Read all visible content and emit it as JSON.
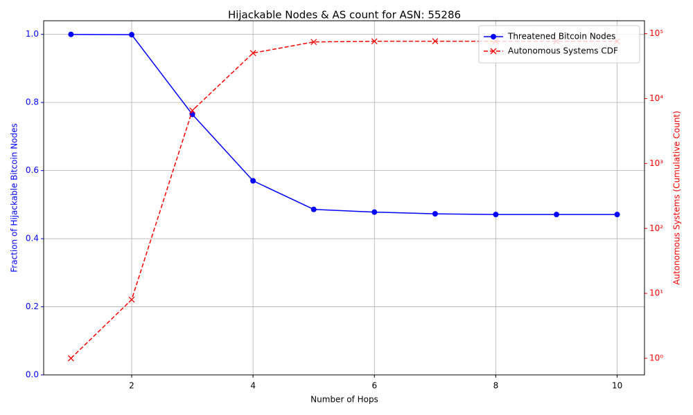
{
  "chart_data": {
    "type": "line",
    "title": "Hijackable Nodes & AS count for ASN: 55286",
    "xlabel": "Number of Hops",
    "ylabel": "Fraction of Hijackable Bitcoin Nodes",
    "y2label": "Autonomous Systems (Cumulative Count)",
    "x": [
      1,
      2,
      3,
      4,
      5,
      6,
      7,
      8,
      9,
      10
    ],
    "series": [
      {
        "name": "Threatened Bitcoin Nodes",
        "color": "#0000ff",
        "linestyle": "solid",
        "marker": "o",
        "axis": "y",
        "values": [
          1.0,
          0.999,
          0.765,
          0.57,
          0.486,
          0.478,
          0.473,
          0.471,
          0.471,
          0.471
        ]
      },
      {
        "name": "Autonomous Systems CDF",
        "color": "#ff0000",
        "linestyle": "dashed",
        "marker": "x",
        "axis": "y2",
        "values": [
          1,
          8,
          6560,
          50300,
          74500,
          76300,
          76500,
          76500,
          76500,
          76500
        ]
      }
    ],
    "xlim": [
      0.55,
      10.45
    ],
    "xticks": [
      2,
      4,
      6,
      8,
      10
    ],
    "ylim": [
      0,
      1.04
    ],
    "yticks": [
      {
        "value": 0,
        "label": "0.0"
      },
      0.2,
      0.4,
      0.6,
      0.8,
      {
        "value": 1,
        "label": "1.0"
      }
    ],
    "y2lim": [
      0.555,
      158000
    ],
    "y2scale": "log",
    "y2ticks": [
      {
        "value": 1,
        "label": "10⁰"
      },
      {
        "value": 10,
        "label": "10¹"
      },
      {
        "value": 100,
        "label": "10²"
      },
      {
        "value": 1000,
        "label": "10³"
      },
      {
        "value": 10000,
        "label": "10⁴"
      },
      {
        "value": 100000,
        "label": "10⁵"
      }
    ],
    "grid": true,
    "legend": "upper right"
  }
}
